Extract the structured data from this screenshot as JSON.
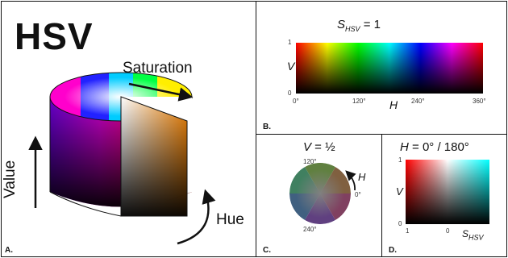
{
  "panels": {
    "a": {
      "letter": "A.",
      "title": "HSV",
      "saturation_label": "Saturation",
      "value_label": "Value",
      "hue_label": "Hue"
    },
    "b": {
      "letter": "B.",
      "title_var": "S",
      "title_sub": "HSV",
      "title_rest": " = 1",
      "y_axis_label": "V",
      "x_axis_label": "H",
      "y_ticks": [
        "1",
        "0"
      ],
      "x_ticks": [
        "0°",
        "120°",
        "240°",
        "360°"
      ]
    },
    "c": {
      "letter": "C.",
      "title_var": "V",
      "title_rest": " = ½",
      "hue_label": "H",
      "angle_labels": [
        "120°",
        "0°",
        "240°"
      ]
    },
    "d": {
      "letter": "D.",
      "title_var": "H",
      "title_rest": " = 0° / 180°",
      "y_axis_label": "V",
      "y_ticks": [
        "1",
        "0"
      ],
      "x_ticks": [
        "1",
        "0"
      ],
      "x_axis_var": "S",
      "x_axis_sub": "HSV"
    }
  },
  "colors": {
    "border": "#111111",
    "text": "#111111"
  }
}
